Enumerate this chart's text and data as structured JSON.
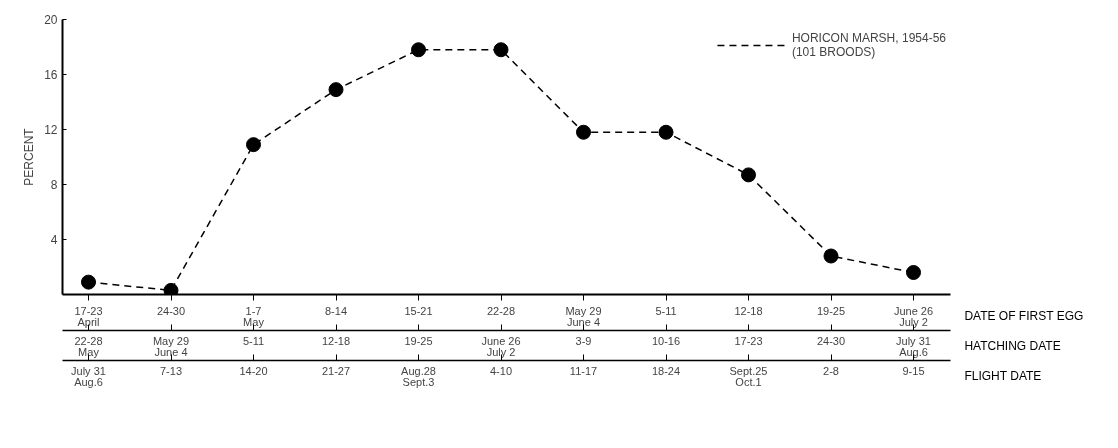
{
  "chart_data": {
    "type": "line",
    "ylabel": "PERCENT",
    "xlabel": "DATE OF FIRST EGG",
    "categories": [
      "17-23\nApril",
      "24-30",
      "1-7\nMay",
      "8-14",
      "15-21",
      "22-28",
      "May 29\nJune 4",
      "5-11",
      "12-18",
      "19-25",
      "June 26\nJuly 2"
    ],
    "series": [
      {
        "name": "HORICON MARSH, 1954-56\n(101 BROODS)",
        "color": "#000000",
        "values": [
          0.9,
          0.3,
          10.9,
          14.9,
          17.8,
          17.8,
          11.8,
          11.8,
          8.7,
          2.8,
          1.6
        ]
      }
    ],
    "ylim": [
      0,
      20
    ],
    "yticks": [
      4,
      8,
      12,
      16,
      20
    ],
    "grid": false,
    "legend": "top right",
    "marker": "circle",
    "line_style": "dashed",
    "annotations": [
      "22-28\nMay",
      "May 29\nJune 4",
      "5-11",
      "12-18",
      "19-25",
      "June 26\nJuly 2",
      "3-9",
      "10-16",
      "17-23",
      "24-30",
      "July 31\nAug.6",
      "HATCHING DATE",
      "July 31\nAug.6",
      "7-13",
      "14-20",
      "21-27",
      "Aug.28\nSept.3",
      "4-10",
      "11-17",
      "18-24",
      "Sept.25\nOct.1",
      "2-8",
      "9-15",
      "FLIGHT DATE"
    ]
  }
}
